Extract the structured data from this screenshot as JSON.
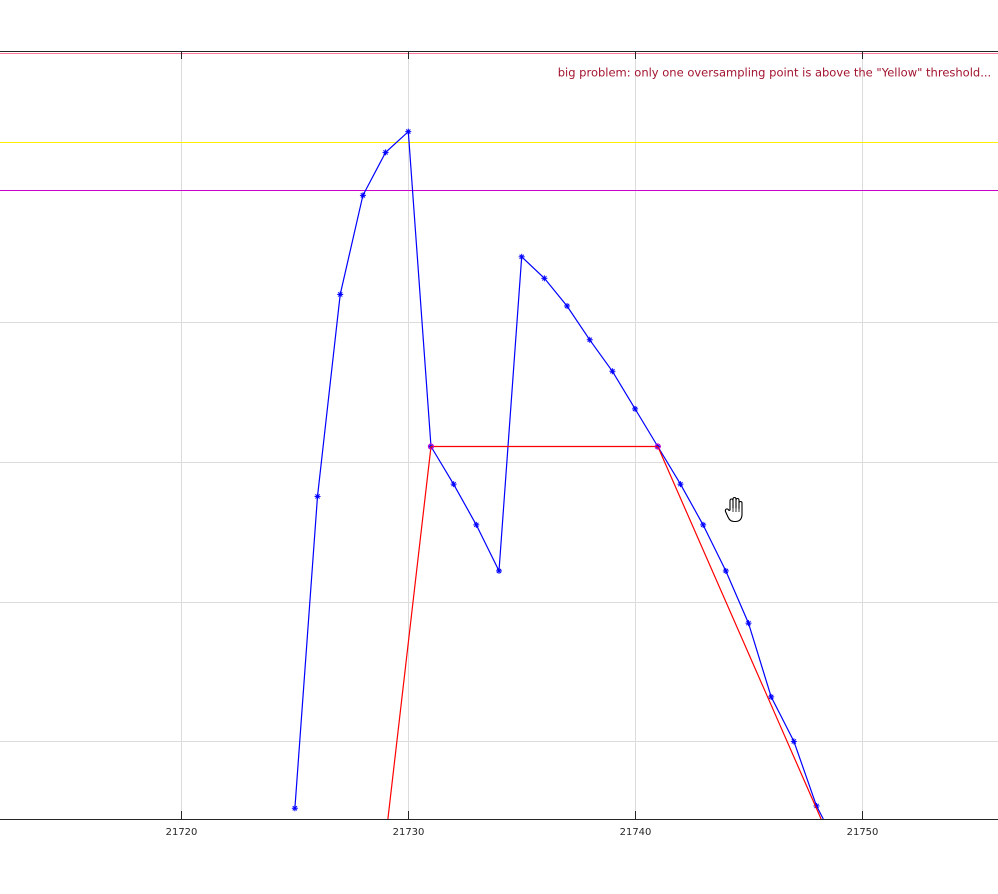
{
  "chart_data": {
    "type": "line",
    "title": "",
    "xlabel": "",
    "ylabel": "",
    "xlim": [
      21712,
      21756
    ],
    "ylim": [
      0,
      1
    ],
    "x_ticks": [
      21720,
      21730,
      21740,
      21750
    ],
    "x_tick_labels": [
      "21720",
      "21730",
      "21740",
      "21750"
    ],
    "y_gridlines": [
      0.101,
      0.283,
      0.465,
      0.647
    ],
    "grid": true,
    "legend": "none",
    "series": [
      {
        "color": "#0000ff",
        "marker": "asterisk",
        "x": [
          21725,
          21726,
          21727,
          21728,
          21729,
          21730,
          21731,
          21732,
          21733,
          21734,
          21735,
          21736,
          21737,
          21738,
          21739,
          21740,
          21741,
          21742,
          21743,
          21744,
          21745,
          21746,
          21747,
          21748,
          21748.3
        ],
        "y": [
          0.014,
          0.42,
          0.683,
          0.812,
          0.868,
          0.895,
          0.485,
          0.436,
          0.383,
          0.323,
          0.732,
          0.704,
          0.668,
          0.624,
          0.583,
          0.534,
          0.485,
          0.436,
          0.383,
          0.323,
          0.255,
          0.159,
          0.101,
          0.017,
          0.0
        ]
      },
      {
        "color": "#ff0000",
        "marker": "none",
        "x": [
          21729.1,
          21731,
          21741,
          21748.2
        ],
        "y": [
          0.0,
          0.485,
          0.485,
          0.0
        ]
      }
    ],
    "threshold_lines": [
      {
        "color": "#ffee00",
        "y": 0.882
      },
      {
        "color": "#cc00cc",
        "y": 0.819
      },
      {
        "color": "#cc00cc",
        "y": 1.0
      },
      {
        "color": "#ff7799",
        "y": 0.997
      }
    ],
    "markers_circled": [
      {
        "x": 21731,
        "y": 0.485
      },
      {
        "x": 21741,
        "y": 0.485
      }
    ],
    "annotations": [
      {
        "text": "big problem: only one oversampling point is above the \"Yellow\" threshold...",
        "x": 21755.7,
        "y": 0.967
      }
    ]
  },
  "ui": {
    "cursor": "hand-cursor"
  }
}
